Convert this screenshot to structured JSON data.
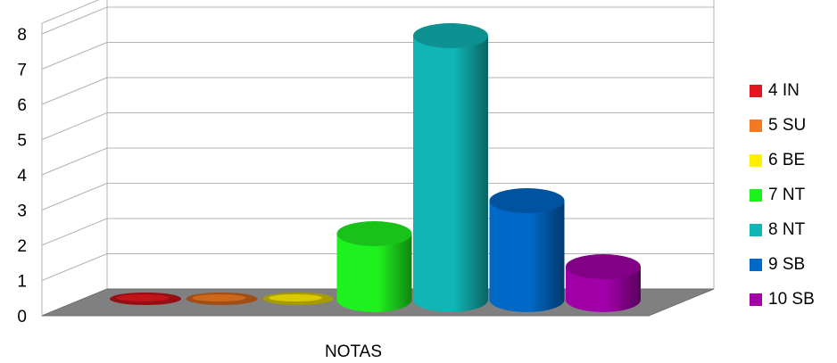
{
  "chart_data": {
    "type": "bar",
    "style": "3d-cylinder",
    "categories": [
      "NOTAS"
    ],
    "xlabel": "NOTAS",
    "ylabel": "",
    "ylim": [
      0,
      8
    ],
    "y_ticks": [
      "0",
      "1",
      "2",
      "3",
      "4",
      "5",
      "6",
      "7",
      "8"
    ],
    "grid": true,
    "legend_position": "right",
    "series": [
      {
        "name": "4 IN",
        "values": [
          0
        ],
        "color": "#e3161d"
      },
      {
        "name": "5 SU",
        "values": [
          0
        ],
        "color": "#f47920"
      },
      {
        "name": "6 BE",
        "values": [
          0
        ],
        "color": "#ffef00"
      },
      {
        "name": "7 NT",
        "values": [
          2
        ],
        "color": "#1ef21e"
      },
      {
        "name": "8 NT",
        "values": [
          8
        ],
        "color": "#10b5b5"
      },
      {
        "name": "9 SB",
        "values": [
          3
        ],
        "color": "#0068c6"
      },
      {
        "name": "10 SB",
        "values": [
          1
        ],
        "color": "#a100a8"
      }
    ]
  }
}
